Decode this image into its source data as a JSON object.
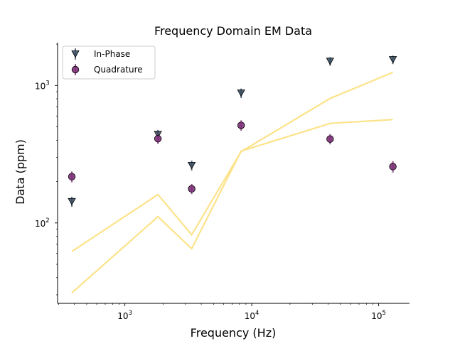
{
  "chart_data": {
    "type": "scatter",
    "title": "Frequency Domain EM Data",
    "xlabel": "Frequency (Hz)",
    "ylabel": "Data (ppm)",
    "xscale": "log",
    "yscale": "log",
    "xlim": [
      295,
      175000
    ],
    "ylim": [
      26,
      2050
    ],
    "grid": false,
    "legend_position": "top-left",
    "x_ticks": [
      {
        "value": 1000,
        "base": "10",
        "exp": "3"
      },
      {
        "value": 10000,
        "base": "10",
        "exp": "4"
      },
      {
        "value": 100000,
        "base": "10",
        "exp": "5"
      }
    ],
    "y_ticks": [
      {
        "value": 100,
        "base": "10",
        "exp": "2"
      },
      {
        "value": 1000,
        "base": "10",
        "exp": "3"
      }
    ],
    "x": [
      382,
      1822,
      3362,
      8245,
      41435,
      129425
    ],
    "series": [
      {
        "name": "In-Phase",
        "marker": "triangle-down",
        "color": "#34495e",
        "values": [
          143,
          440,
          262,
          880,
          1500,
          1540
        ],
        "err": [
          12,
          35,
          22,
          70,
          110,
          110
        ]
      },
      {
        "name": "Quadrature",
        "marker": "circle",
        "color": "#7d2f78",
        "values": [
          217,
          410,
          177,
          513,
          408,
          257
        ],
        "err": [
          20,
          35,
          15,
          45,
          35,
          25
        ]
      }
    ],
    "model_lines": [
      {
        "color": "#fce38a",
        "values": [
          62,
          161,
          82,
          330,
          805,
          1245
        ]
      },
      {
        "color": "#fce38a",
        "values": [
          31,
          111,
          65,
          333,
          530,
          565
        ]
      }
    ]
  }
}
